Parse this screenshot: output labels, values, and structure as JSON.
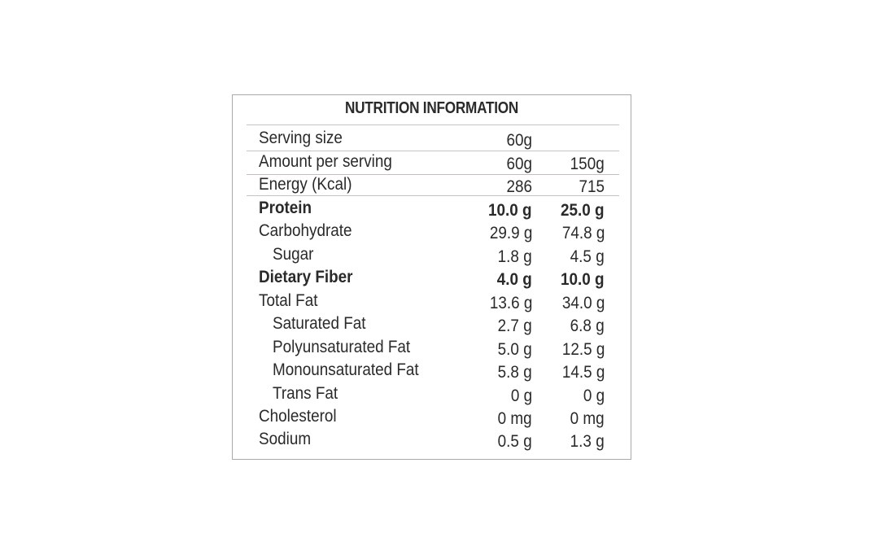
{
  "title": "NUTRITION INFORMATION",
  "rows": [
    {
      "label": "Serving size",
      "v1": "60g",
      "v2": ""
    },
    {
      "label": "Amount per serving",
      "v1": "60g",
      "v2": "150g"
    },
    {
      "label": "Energy (Kcal)",
      "v1": "286",
      "v2": "715"
    },
    {
      "label": "Protein",
      "v1": "10.0 g",
      "v2": "25.0 g"
    },
    {
      "label": "Carbohydrate",
      "v1": "29.9 g",
      "v2": "74.8 g"
    },
    {
      "label": "Sugar",
      "v1": "1.8 g",
      "v2": "4.5 g"
    },
    {
      "label": "Dietary Fiber",
      "v1": "4.0 g",
      "v2": "10.0 g"
    },
    {
      "label": "Total Fat",
      "v1": "13.6 g",
      "v2": "34.0 g"
    },
    {
      "label": "Saturated Fat",
      "v1": "2.7 g",
      "v2": "6.8 g"
    },
    {
      "label": "Polyunsaturated Fat",
      "v1": "5.0 g",
      "v2": "12.5 g"
    },
    {
      "label": "Monounsaturated Fat",
      "v1": "5.8 g",
      "v2": "14.5 g"
    },
    {
      "label": "Trans Fat",
      "v1": "0 g",
      "v2": "0 g"
    },
    {
      "label": "Cholesterol",
      "v1": "0 mg",
      "v2": "0 mg"
    },
    {
      "label": "Sodium",
      "v1": "0.5 g",
      "v2": "1.3 g"
    }
  ]
}
